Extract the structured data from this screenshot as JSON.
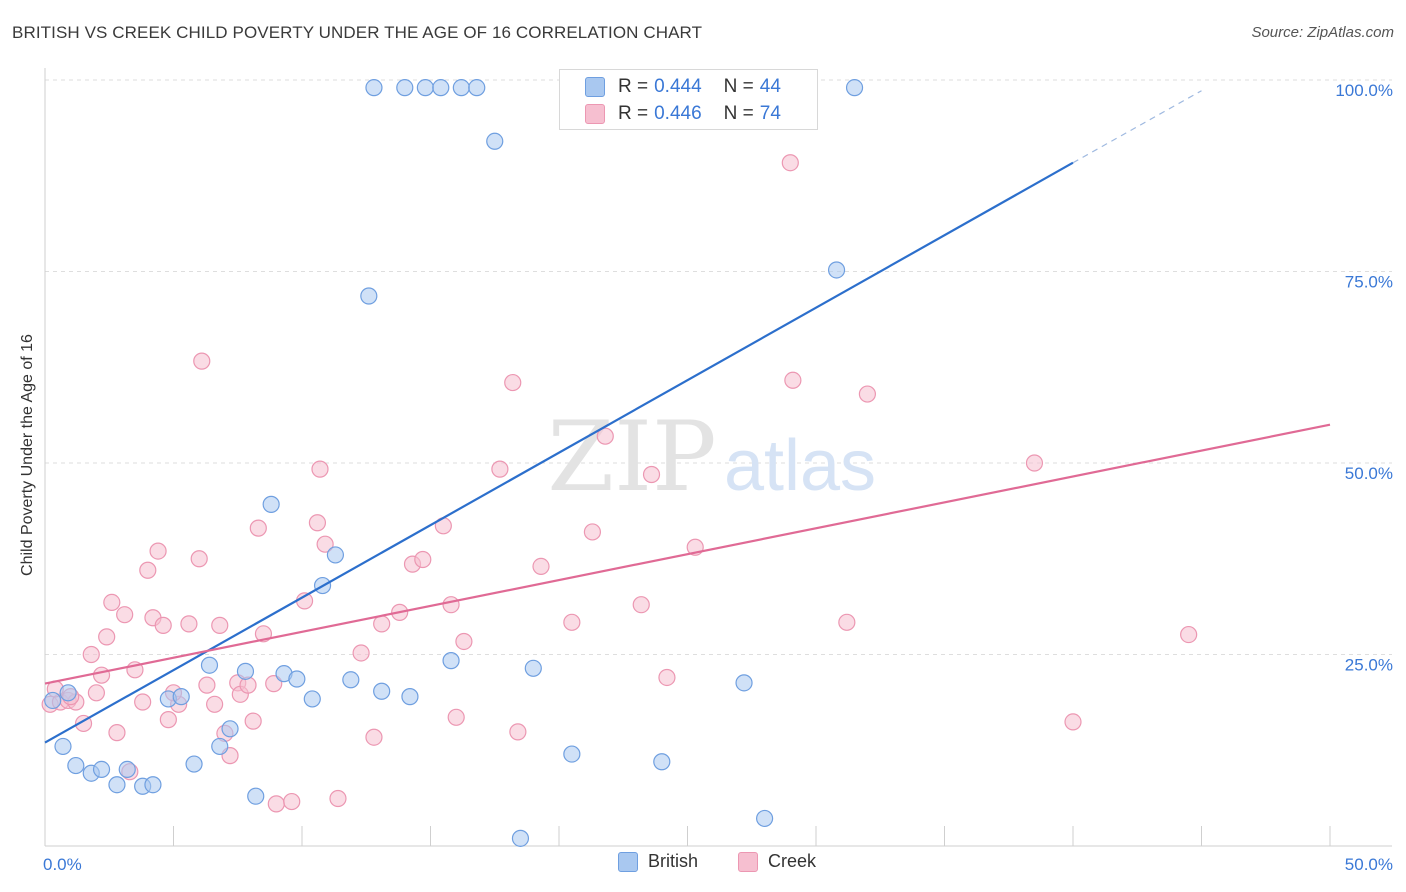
{
  "header": {
    "title": "BRITISH VS CREEK CHILD POVERTY UNDER THE AGE OF 16 CORRELATION CHART",
    "source": "Source: ZipAtlas.com"
  },
  "legend": {
    "rows": [
      {
        "r_label": "R = ",
        "r_value": "0.444",
        "n_label": "N = ",
        "n_value": "44"
      },
      {
        "r_label": "R = ",
        "r_value": "0.446",
        "n_label": "N = ",
        "n_value": "74"
      }
    ]
  },
  "watermark": {
    "zip": "ZIP",
    "atlas": "atlas"
  },
  "colors": {
    "british_fill": "#a9c8f0",
    "british_stroke": "#6f9fe0",
    "british_line": "#2c6fcc",
    "creek_fill": "#f6bfd0",
    "creek_stroke": "#ec97b2",
    "creek_line": "#e06a95",
    "tick_label": "#3a78d6",
    "grid": "#dedede"
  },
  "chart_data": {
    "type": "scatter",
    "title": "BRITISH VS CREEK CHILD POVERTY UNDER THE AGE OF 16 CORRELATION CHART",
    "xlabel": "",
    "ylabel": "Child Poverty Under the Age of 16",
    "xlim": [
      0,
      50
    ],
    "ylim": [
      0,
      100
    ],
    "x_tick_labels": [
      "0.0%",
      "50.0%"
    ],
    "y_tick_labels": [
      "25.0%",
      "50.0%",
      "75.0%",
      "100.0%"
    ],
    "y_tick_values": [
      25,
      50,
      75,
      100
    ],
    "grid": "horizontal dashed",
    "legend_position": "top-center",
    "series": [
      {
        "name": "British",
        "r": 0.444,
        "n": 44,
        "trend": {
          "x0": 0,
          "y0": 13.5,
          "x1": 40,
          "y1": 89.2,
          "dashed_to_x": 45,
          "dashed_to_y": 98.6
        },
        "points": [
          [
            0.3,
            19.0
          ],
          [
            0.7,
            13.0
          ],
          [
            1.2,
            10.5
          ],
          [
            1.8,
            9.5
          ],
          [
            2.2,
            10.0
          ],
          [
            2.8,
            8.0
          ],
          [
            3.2,
            10.0
          ],
          [
            3.8,
            7.8
          ],
          [
            4.2,
            8.0
          ],
          [
            4.8,
            19.2
          ],
          [
            5.3,
            19.5
          ],
          [
            5.8,
            10.7
          ],
          [
            6.4,
            23.6
          ],
          [
            6.8,
            13.0
          ],
          [
            7.2,
            15.3
          ],
          [
            7.8,
            22.8
          ],
          [
            8.2,
            6.5
          ],
          [
            8.8,
            44.6
          ],
          [
            9.3,
            22.5
          ],
          [
            9.8,
            21.8
          ],
          [
            10.4,
            19.2
          ],
          [
            10.8,
            34.0
          ],
          [
            11.3,
            38.0
          ],
          [
            11.9,
            21.7
          ],
          [
            12.6,
            71.8
          ],
          [
            13.1,
            20.2
          ],
          [
            14.2,
            19.5
          ],
          [
            15.8,
            24.2
          ],
          [
            17.5,
            92.0
          ],
          [
            18.5,
            1.0
          ],
          [
            19.0,
            23.2
          ],
          [
            20.5,
            12.0
          ],
          [
            24.0,
            11.0
          ],
          [
            27.2,
            21.3
          ],
          [
            28.0,
            3.6
          ],
          [
            30.8,
            75.2
          ],
          [
            12.8,
            99.0
          ],
          [
            14.0,
            99.0
          ],
          [
            14.8,
            99.0
          ],
          [
            15.4,
            99.0
          ],
          [
            16.2,
            99.0
          ],
          [
            16.8,
            99.0
          ],
          [
            31.5,
            99.0
          ],
          [
            0.9,
            20.0
          ]
        ]
      },
      {
        "name": "Creek",
        "r": 0.446,
        "n": 74,
        "trend": {
          "x0": 0,
          "y0": 21.2,
          "x1": 50,
          "y1": 55.0
        },
        "points": [
          [
            0.2,
            18.5
          ],
          [
            0.6,
            18.8
          ],
          [
            0.9,
            19.0
          ],
          [
            1.2,
            18.8
          ],
          [
            1.5,
            16.0
          ],
          [
            1.8,
            25.0
          ],
          [
            2.2,
            22.3
          ],
          [
            2.4,
            27.3
          ],
          [
            2.6,
            31.8
          ],
          [
            2.8,
            14.8
          ],
          [
            3.1,
            30.2
          ],
          [
            3.3,
            9.7
          ],
          [
            3.5,
            23.0
          ],
          [
            3.8,
            18.8
          ],
          [
            4.0,
            36.0
          ],
          [
            4.2,
            29.8
          ],
          [
            4.4,
            38.5
          ],
          [
            4.6,
            28.8
          ],
          [
            4.8,
            16.5
          ],
          [
            5.2,
            18.5
          ],
          [
            5.6,
            29.0
          ],
          [
            6.0,
            37.5
          ],
          [
            6.1,
            63.3
          ],
          [
            6.3,
            21.0
          ],
          [
            6.6,
            18.5
          ],
          [
            6.8,
            28.8
          ],
          [
            7.0,
            14.7
          ],
          [
            7.2,
            11.8
          ],
          [
            7.5,
            21.3
          ],
          [
            7.6,
            19.8
          ],
          [
            7.9,
            21.0
          ],
          [
            8.1,
            16.3
          ],
          [
            8.3,
            41.5
          ],
          [
            8.5,
            27.7
          ],
          [
            8.9,
            21.2
          ],
          [
            9.0,
            5.5
          ],
          [
            9.6,
            5.8
          ],
          [
            10.1,
            32.0
          ],
          [
            10.6,
            42.2
          ],
          [
            10.7,
            49.2
          ],
          [
            10.9,
            39.4
          ],
          [
            11.4,
            6.2
          ],
          [
            12.3,
            25.2
          ],
          [
            12.8,
            14.2
          ],
          [
            13.1,
            29.0
          ],
          [
            13.8,
            30.5
          ],
          [
            14.3,
            36.8
          ],
          [
            14.7,
            37.4
          ],
          [
            15.5,
            41.8
          ],
          [
            15.8,
            31.5
          ],
          [
            16.0,
            16.8
          ],
          [
            16.3,
            26.7
          ],
          [
            17.7,
            49.2
          ],
          [
            18.2,
            60.5
          ],
          [
            18.4,
            14.9
          ],
          [
            19.3,
            36.5
          ],
          [
            20.5,
            29.2
          ],
          [
            21.3,
            41.0
          ],
          [
            21.8,
            53.5
          ],
          [
            23.2,
            31.5
          ],
          [
            23.6,
            48.5
          ],
          [
            24.2,
            22.0
          ],
          [
            25.3,
            39.0
          ],
          [
            29.1,
            60.8
          ],
          [
            29.0,
            89.2
          ],
          [
            31.2,
            29.2
          ],
          [
            32.0,
            59.0
          ],
          [
            38.5,
            50.0
          ],
          [
            40.0,
            16.2
          ],
          [
            44.5,
            27.6
          ],
          [
            0.4,
            20.5
          ],
          [
            1.0,
            19.5
          ],
          [
            5.0,
            20.0
          ],
          [
            2.0,
            20.0
          ]
        ]
      }
    ]
  }
}
